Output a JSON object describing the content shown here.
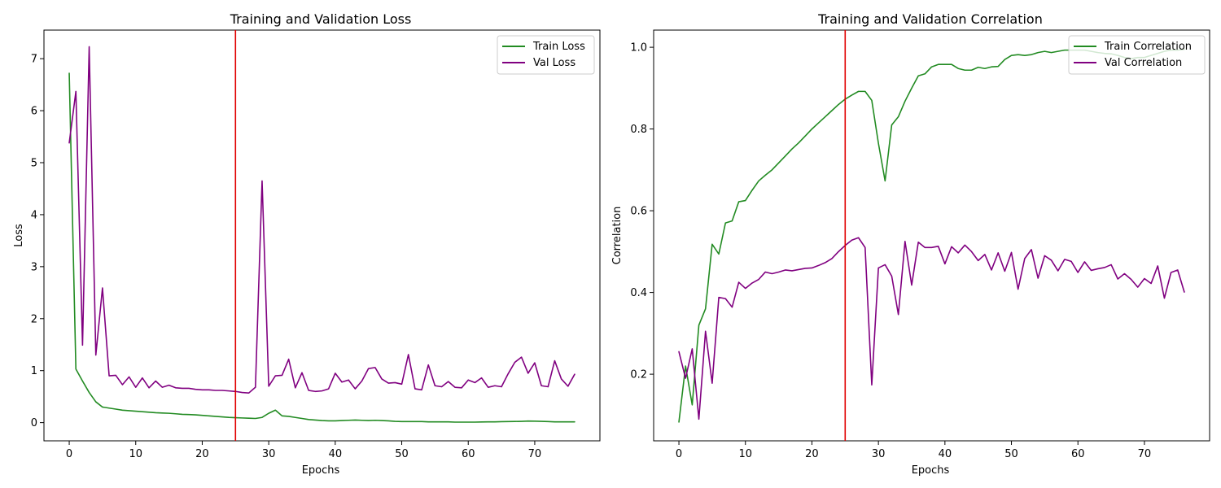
{
  "chart_data": [
    {
      "type": "line",
      "title": "Training and Validation Loss",
      "xlabel": "Epochs",
      "ylabel": "Loss",
      "xlim": [
        -3.8,
        79.8
      ],
      "ylim": [
        -0.35,
        7.55
      ],
      "xticks": [
        0,
        10,
        20,
        30,
        40,
        50,
        60,
        70
      ],
      "yticks": [
        0,
        1,
        2,
        3,
        4,
        5,
        6,
        7
      ],
      "grid": false,
      "legend_position": "top-right",
      "vline_x": 25,
      "vline_color": "#e00000",
      "series": [
        {
          "name": "Train Loss",
          "color": "#228b22",
          "values": [
            6.72,
            1.03,
            0.8,
            0.58,
            0.4,
            0.3,
            0.28,
            0.26,
            0.24,
            0.23,
            0.22,
            0.21,
            0.2,
            0.19,
            0.185,
            0.18,
            0.17,
            0.16,
            0.155,
            0.15,
            0.14,
            0.13,
            0.12,
            0.11,
            0.1,
            0.095,
            0.09,
            0.085,
            0.08,
            0.1,
            0.18,
            0.24,
            0.13,
            0.12,
            0.1,
            0.08,
            0.06,
            0.05,
            0.04,
            0.035,
            0.035,
            0.04,
            0.045,
            0.05,
            0.045,
            0.04,
            0.045,
            0.04,
            0.035,
            0.025,
            0.02,
            0.02,
            0.02,
            0.02,
            0.015,
            0.015,
            0.015,
            0.015,
            0.01,
            0.01,
            0.01,
            0.01,
            0.012,
            0.015,
            0.015,
            0.018,
            0.02,
            0.022,
            0.025,
            0.03,
            0.028,
            0.025,
            0.02,
            0.015,
            0.015,
            0.015,
            0.015
          ]
        },
        {
          "name": "Val Loss",
          "color": "#800080",
          "values": [
            5.38,
            6.37,
            1.49,
            7.23,
            1.3,
            2.59,
            0.9,
            0.91,
            0.73,
            0.88,
            0.68,
            0.86,
            0.67,
            0.8,
            0.68,
            0.72,
            0.67,
            0.66,
            0.66,
            0.64,
            0.63,
            0.63,
            0.62,
            0.62,
            0.61,
            0.6,
            0.58,
            0.57,
            0.68,
            4.65,
            0.7,
            0.9,
            0.91,
            1.22,
            0.67,
            0.96,
            0.62,
            0.6,
            0.61,
            0.65,
            0.95,
            0.78,
            0.82,
            0.65,
            0.8,
            1.04,
            1.06,
            0.84,
            0.76,
            0.77,
            0.74,
            1.31,
            0.65,
            0.63,
            1.11,
            0.71,
            0.69,
            0.79,
            0.68,
            0.67,
            0.82,
            0.77,
            0.86,
            0.68,
            0.71,
            0.69,
            0.94,
            1.16,
            1.26,
            0.95,
            1.15,
            0.71,
            0.69,
            1.19,
            0.84,
            0.7,
            0.93
          ]
        }
      ]
    },
    {
      "type": "line",
      "title": "Training and Validation Correlation",
      "xlabel": "Epochs",
      "ylabel": "Correlation",
      "xlim": [
        -3.8,
        79.8
      ],
      "ylim": [
        0.037,
        1.042
      ],
      "xticks": [
        0,
        10,
        20,
        30,
        40,
        50,
        60,
        70
      ],
      "yticks": [
        0.2,
        0.4,
        0.6,
        0.8,
        1.0
      ],
      "ytick_labels": [
        "0.2",
        "0.4",
        "0.6",
        "0.8",
        "1.0"
      ],
      "grid": false,
      "legend_position": "top-right",
      "vline_x": 25,
      "vline_color": "#e00000",
      "series": [
        {
          "name": "Train Correlation",
          "color": "#228b22",
          "values": [
            0.083,
            0.22,
            0.125,
            0.32,
            0.36,
            0.518,
            0.494,
            0.57,
            0.575,
            0.622,
            0.625,
            0.65,
            0.673,
            0.687,
            0.7,
            0.717,
            0.734,
            0.751,
            0.766,
            0.783,
            0.8,
            0.815,
            0.83,
            0.845,
            0.86,
            0.873,
            0.883,
            0.892,
            0.892,
            0.87,
            0.765,
            0.673,
            0.81,
            0.83,
            0.868,
            0.9,
            0.93,
            0.935,
            0.952,
            0.958,
            0.958,
            0.958,
            0.948,
            0.944,
            0.944,
            0.951,
            0.948,
            0.952,
            0.953,
            0.97,
            0.98,
            0.982,
            0.98,
            0.982,
            0.987,
            0.99,
            0.987,
            0.99,
            0.993,
            0.993,
            0.993,
            0.993,
            0.99,
            0.987,
            0.985,
            0.984,
            0.98,
            0.975,
            0.972,
            0.975,
            0.975,
            0.98,
            0.985,
            0.99,
            0.993,
            0.993,
            0.995
          ]
        },
        {
          "name": "Val Correlation",
          "color": "#800080",
          "values": [
            0.255,
            0.19,
            0.262,
            0.09,
            0.305,
            0.178,
            0.388,
            0.385,
            0.364,
            0.425,
            0.41,
            0.423,
            0.432,
            0.45,
            0.446,
            0.45,
            0.455,
            0.453,
            0.456,
            0.459,
            0.46,
            0.466,
            0.473,
            0.483,
            0.5,
            0.515,
            0.528,
            0.534,
            0.51,
            0.174,
            0.46,
            0.468,
            0.44,
            0.346,
            0.525,
            0.418,
            0.523,
            0.51,
            0.51,
            0.513,
            0.47,
            0.512,
            0.497,
            0.516,
            0.5,
            0.478,
            0.493,
            0.455,
            0.497,
            0.452,
            0.498,
            0.408,
            0.483,
            0.505,
            0.435,
            0.49,
            0.479,
            0.453,
            0.481,
            0.476,
            0.449,
            0.475,
            0.454,
            0.458,
            0.461,
            0.468,
            0.433,
            0.446,
            0.432,
            0.413,
            0.434,
            0.422,
            0.465,
            0.386,
            0.449,
            0.455,
            0.401
          ]
        }
      ]
    }
  ]
}
